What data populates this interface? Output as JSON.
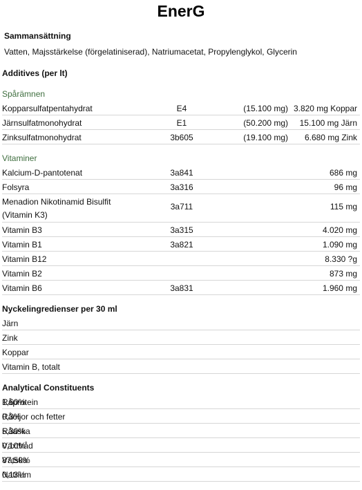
{
  "title": "EnerG",
  "composition": {
    "heading": "Sammansättning",
    "text": "Vatten, Majsstärkelse (förgelatiniserad), Natriumacetat, Propylenglykol, Glycerin"
  },
  "additives": {
    "heading": "Additives (per lt)",
    "trace_heading": "Spårämnen",
    "trace": [
      {
        "name": "Kopparsulfatpentahydrat",
        "code": "E4",
        "compound": "(15.100 mg)",
        "amount": "3.820 mg Koppar"
      },
      {
        "name": "Järnsulfatmonohydrat",
        "code": "E1",
        "compound": "(50.200 mg)",
        "amount": "15.100 mg Järn"
      },
      {
        "name": "Zinksulfatmonohydrat",
        "code": "3b605",
        "compound": "(19.100 mg)",
        "amount": "6.680 mg Zink"
      }
    ],
    "vitamins_heading": "Vitaminer",
    "vitamins": [
      {
        "name": "Kalcium-D-pantotenat",
        "code": "3a841",
        "amount": "686 mg"
      },
      {
        "name": "Folsyra",
        "code": "3a316",
        "amount": "96 mg"
      },
      {
        "name": "Menadion Nikotinamid Bisulfit (Vitamin K3)",
        "code": "3a711",
        "amount": "115 mg"
      },
      {
        "name": "Vitamin B3",
        "code": "3a315",
        "amount": "4.020 mg"
      },
      {
        "name": "Vitamin B1",
        "code": "3a821",
        "amount": "1.090 mg"
      },
      {
        "name": "Vitamin B12",
        "code": "",
        "amount": "8.330 ?g"
      },
      {
        "name": "Vitamin B2",
        "code": "",
        "amount": "873 mg"
      },
      {
        "name": "Vitamin B6",
        "code": "3a831",
        "amount": "1.960 mg"
      }
    ]
  },
  "key_ingredients": {
    "heading": "Nyckelingredienser per 30 ml",
    "items": [
      "Järn",
      "Zink",
      "Koppar",
      "Vitamin B, totalt"
    ]
  },
  "analytical": {
    "heading": "Analytical Constituents",
    "items": [
      {
        "name": "Råprotein",
        "value": "1,60%"
      },
      {
        "name": "Råoljor och fetter",
        "value": "0,3%"
      },
      {
        "name": "Råaska",
        "value": "5,30%"
      },
      {
        "name": "Växttråd",
        "value": "0,10%"
      },
      {
        "name": "Vätska",
        "value": "87,50%"
      },
      {
        "name": "Natrium",
        "value": "0,13%"
      }
    ]
  }
}
